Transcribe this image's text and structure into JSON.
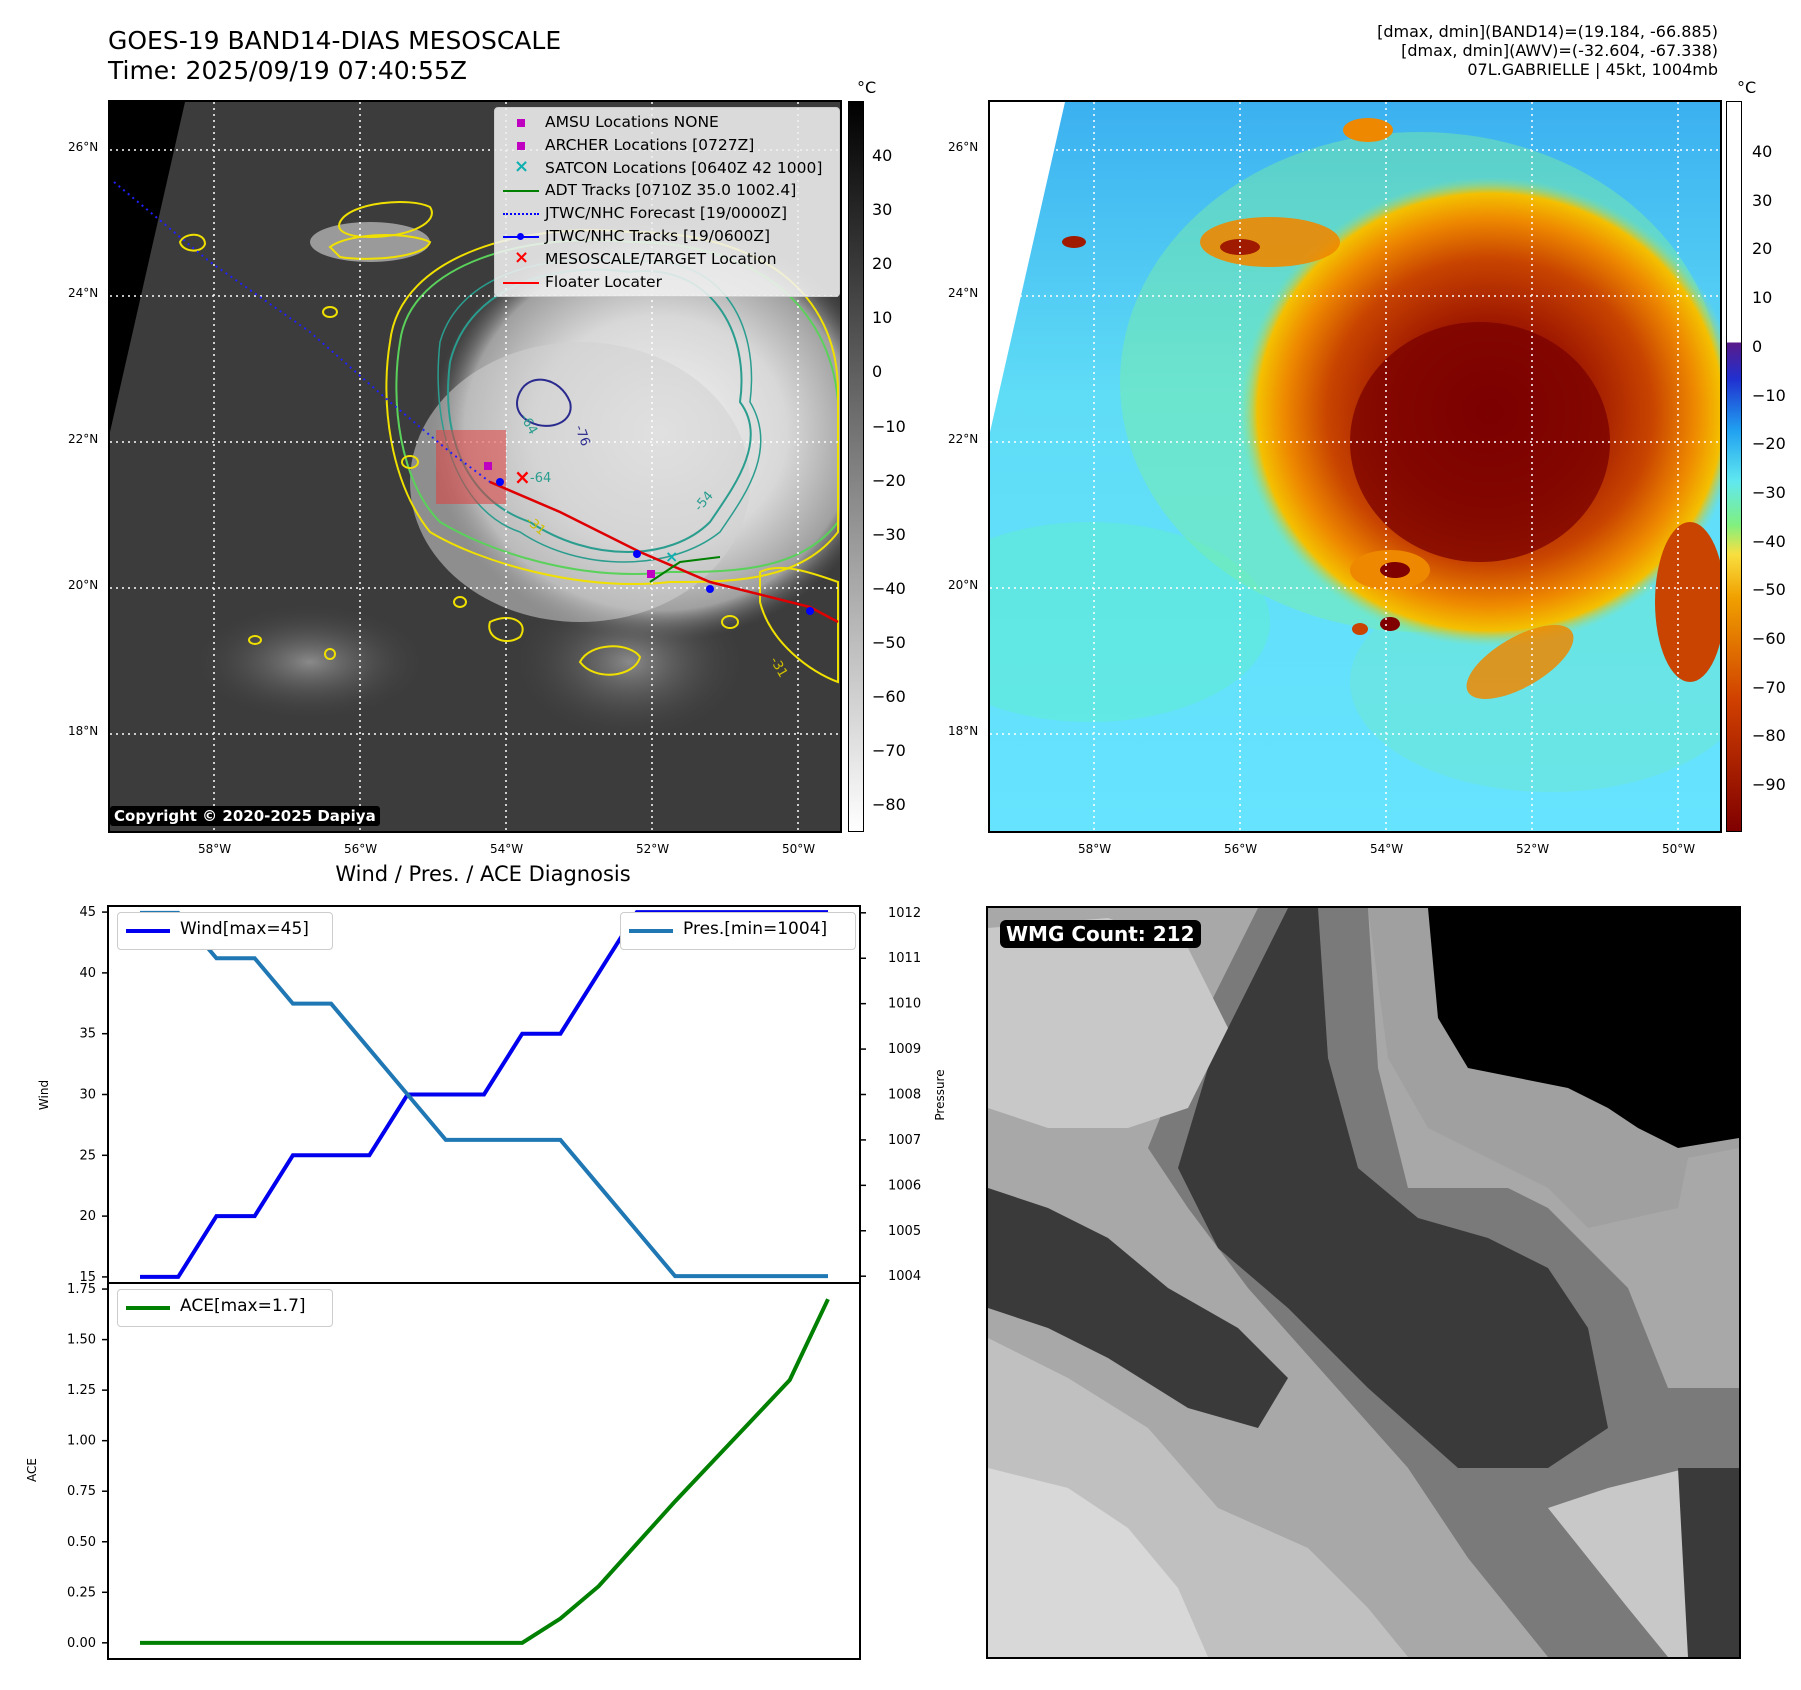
{
  "header": {
    "title_line1": "GOES-19 BAND14-DIAS MESOSCALE",
    "title_line2": "Time: 2025/09/19 07:40:55Z",
    "stats_line1": "[dmax, dmin](BAND14)=(19.184, -66.885)",
    "stats_line2": "[dmax, dmin](AWV)=(-32.604, -67.338)",
    "stats_line3": "07L.GABRIELLE | 45kt, 1004mb"
  },
  "ir_panel": {
    "copyright": "Copyright © 2020-2025 Dapiya",
    "lat_labels": [
      "26°N",
      "24°N",
      "22°N",
      "20°N",
      "18°N"
    ],
    "lon_labels": [
      "58°W",
      "56°W",
      "54°W",
      "52°W",
      "50°W"
    ],
    "contour_labels": [
      "-64",
      "-64",
      "-76",
      "-54",
      "-31",
      "-31"
    ],
    "legend": [
      {
        "label": "AMSU Locations NONE",
        "color": "#c000c0",
        "marker": "square"
      },
      {
        "label": "ARCHER Locations [0727Z]",
        "color": "#c000c0",
        "marker": "square"
      },
      {
        "label": "SATCON Locations [0640Z 42 1000]",
        "color": "#10b0b0",
        "marker": "x"
      },
      {
        "label": "ADT Tracks [0710Z 35.0 1002.4]",
        "color": "#008000",
        "marker": "line"
      },
      {
        "label": "JTWC/NHC Forecast [19/0000Z]",
        "color": "#0000ff",
        "marker": "dotted"
      },
      {
        "label": "JTWC/NHC Tracks [19/0600Z]",
        "color": "#0000ff",
        "marker": "line-dot"
      },
      {
        "label": "MESOSCALE/TARGET Location",
        "color": "#ff0000",
        "marker": "x"
      },
      {
        "label": "Floater Locater",
        "color": "#ff0000",
        "marker": "line"
      }
    ],
    "colorbar": {
      "unit": "°C",
      "ticks": [
        "40",
        "30",
        "20",
        "10",
        "0",
        "−10",
        "−20",
        "−30",
        "−40",
        "−50",
        "−60",
        "−70",
        "−80"
      ]
    }
  },
  "color_panel": {
    "lat_labels": [
      "26°N",
      "24°N",
      "22°N",
      "20°N",
      "18°N"
    ],
    "lon_labels": [
      "58°W",
      "56°W",
      "54°W",
      "52°W",
      "50°W"
    ],
    "colorbar": {
      "unit": "°C",
      "ticks": [
        "40",
        "30",
        "20",
        "10",
        "0",
        "−10",
        "−20",
        "−30",
        "−40",
        "−50",
        "−60",
        "−70",
        "−80",
        "−90"
      ]
    }
  },
  "wmg_panel": {
    "badge": "WMG Count: 212"
  },
  "colors": {
    "wind": "#0000ee",
    "pressure": "#1f77b4",
    "ace": "#008000"
  },
  "chart_data": [
    {
      "type": "line",
      "title": "Wind / Pres. / ACE Diagnosis",
      "x": [
        0,
        1,
        2,
        3,
        4,
        5,
        6,
        7,
        8,
        9,
        10,
        11,
        12,
        13,
        14,
        15,
        16,
        17,
        18
      ],
      "series": [
        {
          "name": "Wind[max=45]",
          "axis": "left",
          "values": [
            15,
            15,
            20,
            20,
            25,
            25,
            25,
            30,
            30,
            30,
            35,
            35,
            40,
            45,
            45,
            45,
            45,
            45,
            45
          ]
        },
        {
          "name": "Pres.[min=1004]",
          "axis": "right",
          "values": [
            1012,
            1012,
            1011,
            1011,
            1010,
            1010,
            1009,
            1008,
            1007,
            1007,
            1007,
            1007,
            1006,
            1005,
            1004,
            1004,
            1004,
            1004,
            1004
          ]
        }
      ],
      "ylabel": "Wind",
      "ylabel_right": "Pressure",
      "ylim": [
        14.5,
        45.5
      ],
      "ylim_right": [
        1003.85,
        1012.15
      ],
      "yticks": [
        15,
        20,
        25,
        30,
        35,
        40,
        45
      ],
      "yticks_right": [
        1004,
        1005,
        1006,
        1007,
        1008,
        1009,
        1010,
        1011,
        1012
      ]
    },
    {
      "type": "line",
      "x": [
        0,
        1,
        2,
        3,
        4,
        5,
        6,
        7,
        8,
        9,
        10,
        11,
        12,
        13,
        14,
        15,
        16,
        17,
        18
      ],
      "series": [
        {
          "name": "ACE[max=1.7]",
          "values": [
            0,
            0,
            0,
            0,
            0,
            0,
            0,
            0,
            0,
            0,
            0,
            0.12,
            0.28,
            0.49,
            0.7,
            0.9,
            1.1,
            1.3,
            1.7
          ]
        }
      ],
      "ylabel": "ACE",
      "ylim": [
        -0.08,
        1.78
      ],
      "yticks": [
        "0.00",
        "0.25",
        "0.50",
        "0.75",
        "1.00",
        "1.25",
        "1.50",
        "1.75"
      ]
    }
  ]
}
